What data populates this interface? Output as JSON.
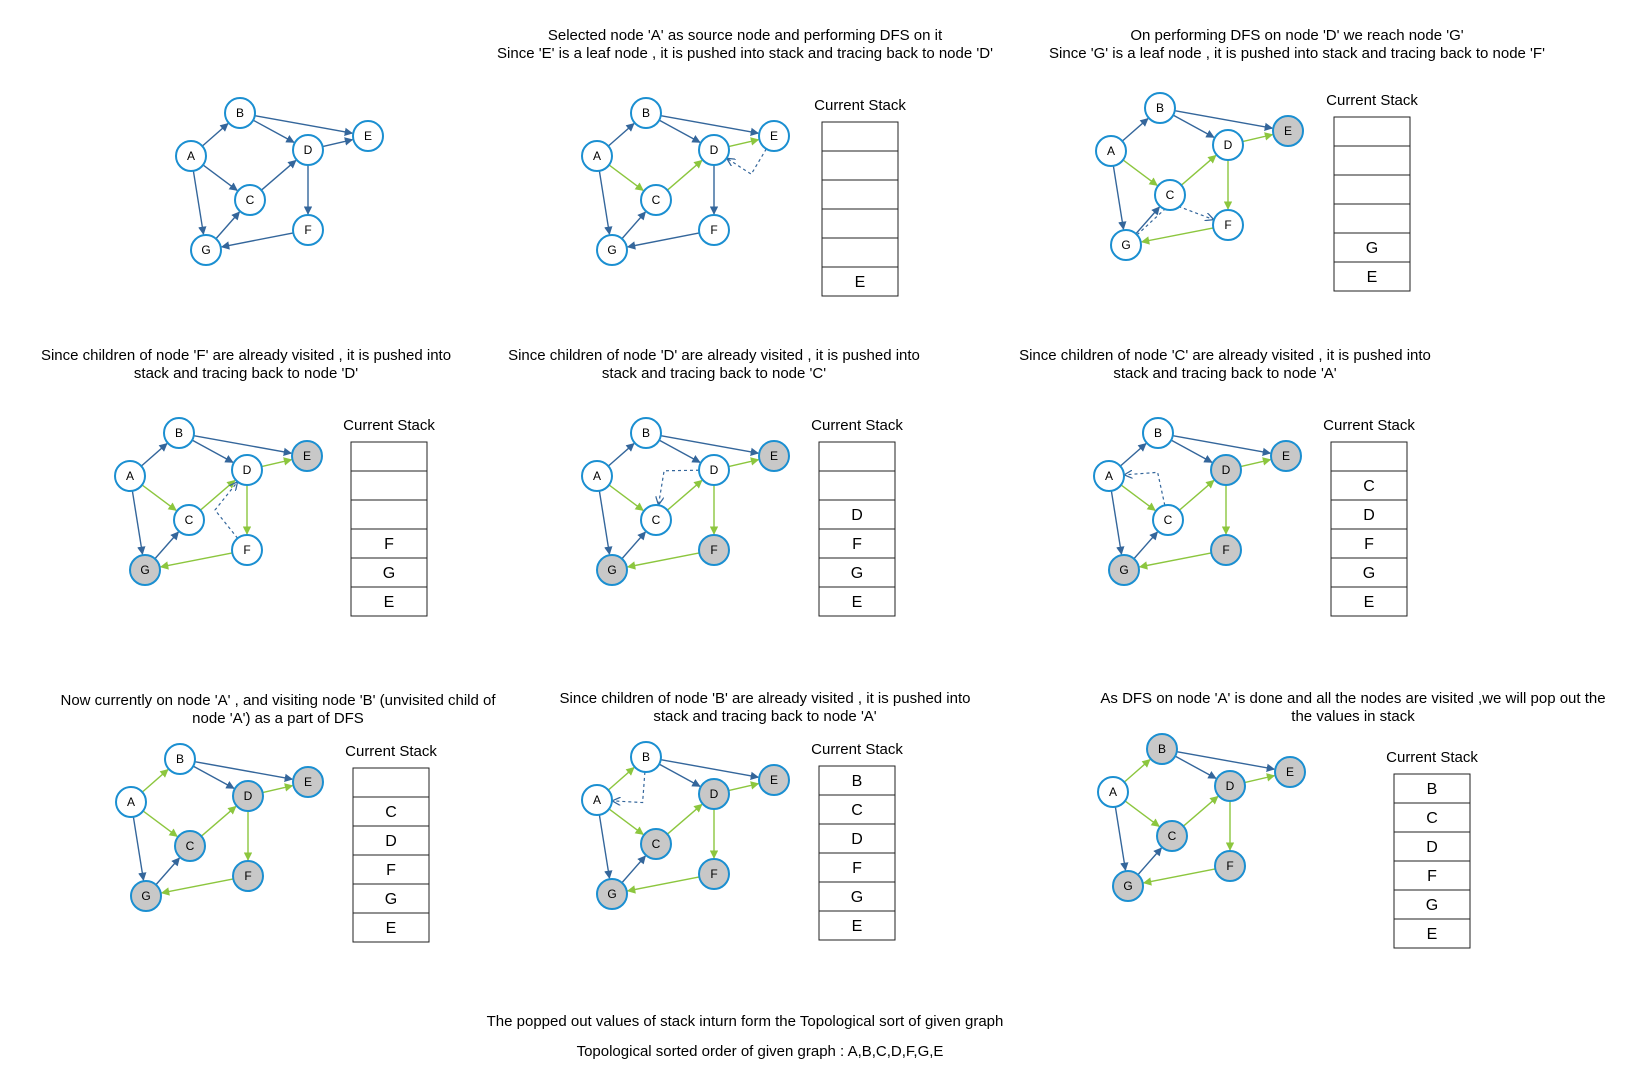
{
  "palette": {
    "node_stroke": "#1b8fd1",
    "visited_fill": "#c8c8c8",
    "edge_blue": "#34669b",
    "edge_green": "#8cc63e",
    "backtrack": "#34669b"
  },
  "stack_title": "Current Stack",
  "panels": [
    {
      "id": "p1",
      "caption": [],
      "visited": [],
      "green_edges": [],
      "backtrack": null,
      "stack": null
    },
    {
      "id": "p2",
      "caption": [
        "Selected node 'A' as source node and performing DFS on it",
        "Since 'E' is a leaf node , it is pushed into stack and tracing back to node 'D'"
      ],
      "visited": [],
      "green_edges": [
        "A-C",
        "C-D",
        "D-E"
      ],
      "backtrack": "E-D",
      "stack": [
        "",
        "",
        "",
        "",
        "",
        "E"
      ]
    },
    {
      "id": "p3",
      "caption": [
        "On performing DFS on node 'D' we reach node 'G'",
        "Since 'G' is a leaf node , it is pushed into stack and tracing back to node 'F'"
      ],
      "visited": [
        "E"
      ],
      "green_edges": [
        "A-C",
        "C-D",
        "D-E",
        "D-F",
        "F-G"
      ],
      "backtrack": "G-F",
      "stack": [
        "",
        "",
        "",
        "",
        "G",
        "E"
      ]
    },
    {
      "id": "p4",
      "caption": [
        "Since children of node 'F' are already visited , it is pushed into",
        "stack and tracing back to node 'D'"
      ],
      "visited": [
        "E",
        "G"
      ],
      "green_edges": [
        "A-C",
        "C-D",
        "D-E",
        "D-F",
        "F-G"
      ],
      "backtrack": "F-D",
      "stack": [
        "",
        "",
        "",
        "F",
        "G",
        "E"
      ]
    },
    {
      "id": "p5",
      "caption": [
        "Since children of node 'D' are already visited , it is pushed into",
        "stack and tracing back to node 'C'"
      ],
      "visited": [
        "E",
        "F",
        "G"
      ],
      "green_edges": [
        "A-C",
        "C-D",
        "D-E",
        "D-F",
        "F-G"
      ],
      "backtrack": "D-C",
      "stack": [
        "",
        "",
        "D",
        "F",
        "G",
        "E"
      ]
    },
    {
      "id": "p6",
      "caption": [
        "Since children of node 'C' are already visited , it is pushed into",
        "stack and tracing back to node 'A'"
      ],
      "visited": [
        "D",
        "E",
        "F",
        "G"
      ],
      "green_edges": [
        "A-C",
        "C-D",
        "D-E",
        "D-F",
        "F-G"
      ],
      "backtrack": "C-A",
      "stack": [
        "",
        "C",
        "D",
        "F",
        "G",
        "E"
      ]
    },
    {
      "id": "p7",
      "caption": [
        "Now currently on node 'A' , and visiting node 'B' (unvisited child of",
        "node 'A') as a part of DFS"
      ],
      "visited": [
        "C",
        "D",
        "E",
        "F",
        "G"
      ],
      "green_edges": [
        "A-B",
        "A-C",
        "C-D",
        "D-E",
        "D-F",
        "F-G"
      ],
      "backtrack": null,
      "stack": [
        "",
        "C",
        "D",
        "F",
        "G",
        "E"
      ]
    },
    {
      "id": "p8",
      "caption": [
        "Since children of node 'B' are already visited , it is pushed into",
        "stack and tracing back to node 'A'"
      ],
      "visited": [
        "C",
        "D",
        "E",
        "F",
        "G"
      ],
      "green_edges": [
        "A-B",
        "A-C",
        "C-D",
        "D-E",
        "D-F",
        "F-G"
      ],
      "backtrack": "B-A",
      "stack": [
        "B",
        "C",
        "D",
        "F",
        "G",
        "E"
      ]
    },
    {
      "id": "p9",
      "caption": [
        "As DFS on node 'A' is done and all the nodes are visited ,we will pop out the",
        "the values in stack"
      ],
      "visited": [
        "B",
        "C",
        "D",
        "E",
        "F",
        "G"
      ],
      "green_edges": [
        "A-B",
        "A-C",
        "C-D",
        "D-E",
        "D-F",
        "F-G"
      ],
      "backtrack": null,
      "stack": [
        "B",
        "C",
        "D",
        "F",
        "G",
        "E"
      ]
    }
  ],
  "graph": {
    "nodes": [
      "A",
      "B",
      "C",
      "D",
      "E",
      "F",
      "G"
    ],
    "edges": [
      "A-B",
      "A-C",
      "A-G",
      "B-D",
      "B-E",
      "C-D",
      "D-E",
      "D-F",
      "F-G",
      "G-C"
    ]
  },
  "footer": {
    "line1": "The popped out values of stack inturn form the Topological sort of given graph",
    "line2": "Topological sorted order of given graph : A,B,C,D,F,G,E"
  }
}
